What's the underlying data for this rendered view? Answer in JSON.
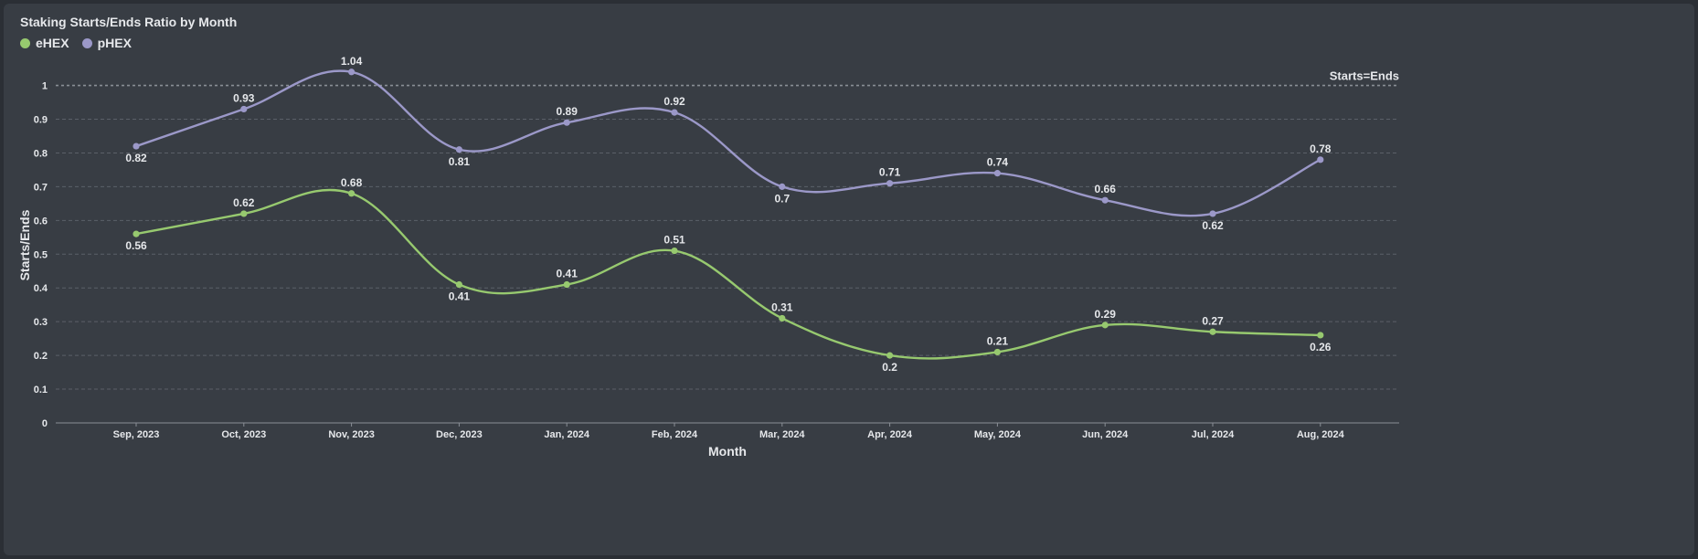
{
  "chart_data": {
    "type": "line",
    "title": "Staking Starts/Ends Ratio by Month",
    "xlabel": "Month",
    "ylabel": "Starts/Ends",
    "ylim": [
      0,
      1.08
    ],
    "yticks": [
      0,
      0.1,
      0.2,
      0.3,
      0.4,
      0.5,
      0.6,
      0.7,
      0.8,
      0.9,
      1
    ],
    "grid": true,
    "legend": "top-left",
    "categories": [
      "Sep, 2023",
      "Oct, 2023",
      "Nov, 2023",
      "Dec, 2023",
      "Jan, 2024",
      "Feb, 2024",
      "Mar, 2024",
      "Apr, 2024",
      "May, 2024",
      "Jun, 2024",
      "Jul, 2024",
      "Aug, 2024"
    ],
    "series": [
      {
        "name": "eHEX",
        "color": "#97c96f",
        "values": [
          0.56,
          0.62,
          0.68,
          0.41,
          0.41,
          0.51,
          0.31,
          0.2,
          0.21,
          0.29,
          0.27,
          0.26
        ],
        "label_pos": [
          "below",
          "above",
          "above",
          "below",
          "above",
          "above",
          "above",
          "below",
          "above",
          "above",
          "above",
          "below"
        ]
      },
      {
        "name": "pHEX",
        "color": "#9b98c8",
        "values": [
          0.82,
          0.93,
          1.04,
          0.81,
          0.89,
          0.92,
          0.7,
          0.71,
          0.74,
          0.66,
          0.62,
          0.78
        ],
        "label_pos": [
          "below",
          "above",
          "above",
          "below",
          "above",
          "above",
          "below",
          "above",
          "above",
          "above",
          "below",
          "above"
        ]
      }
    ],
    "reference_line": {
      "value": 1,
      "label": "Starts=Ends"
    }
  }
}
